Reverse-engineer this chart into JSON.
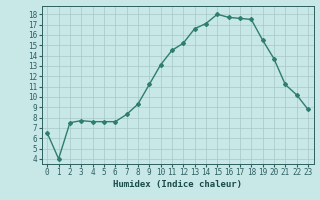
{
  "x": [
    0,
    1,
    2,
    3,
    4,
    5,
    6,
    7,
    8,
    9,
    10,
    11,
    12,
    13,
    14,
    15,
    16,
    17,
    18,
    19,
    20,
    21,
    22,
    23
  ],
  "y": [
    6.5,
    4.0,
    7.5,
    7.7,
    7.6,
    7.6,
    7.6,
    8.3,
    9.3,
    11.2,
    13.1,
    14.5,
    15.2,
    16.6,
    17.1,
    18.0,
    17.7,
    17.6,
    17.5,
    15.5,
    13.7,
    11.2,
    10.2,
    8.8
  ],
  "line_color": "#2e7d6e",
  "marker": "D",
  "markersize": 2.0,
  "bg_color": "#c8e8e8",
  "grid_color": "#a8c8c8",
  "xlabel": "Humidex (Indice chaleur)",
  "xlabel_fontsize": 6.5,
  "ylabel_ticks": [
    4,
    5,
    6,
    7,
    8,
    9,
    10,
    11,
    12,
    13,
    14,
    15,
    16,
    17,
    18
  ],
  "xlim": [
    -0.5,
    23.5
  ],
  "ylim": [
    3.5,
    18.8
  ],
  "xtick_labels": [
    "0",
    "1",
    "2",
    "3",
    "4",
    "5",
    "6",
    "7",
    "8",
    "9",
    "10",
    "11",
    "12",
    "13",
    "14",
    "15",
    "16",
    "17",
    "18",
    "19",
    "20",
    "21",
    "22",
    "23"
  ],
  "tick_fontsize": 5.5,
  "linewidth": 1.0
}
